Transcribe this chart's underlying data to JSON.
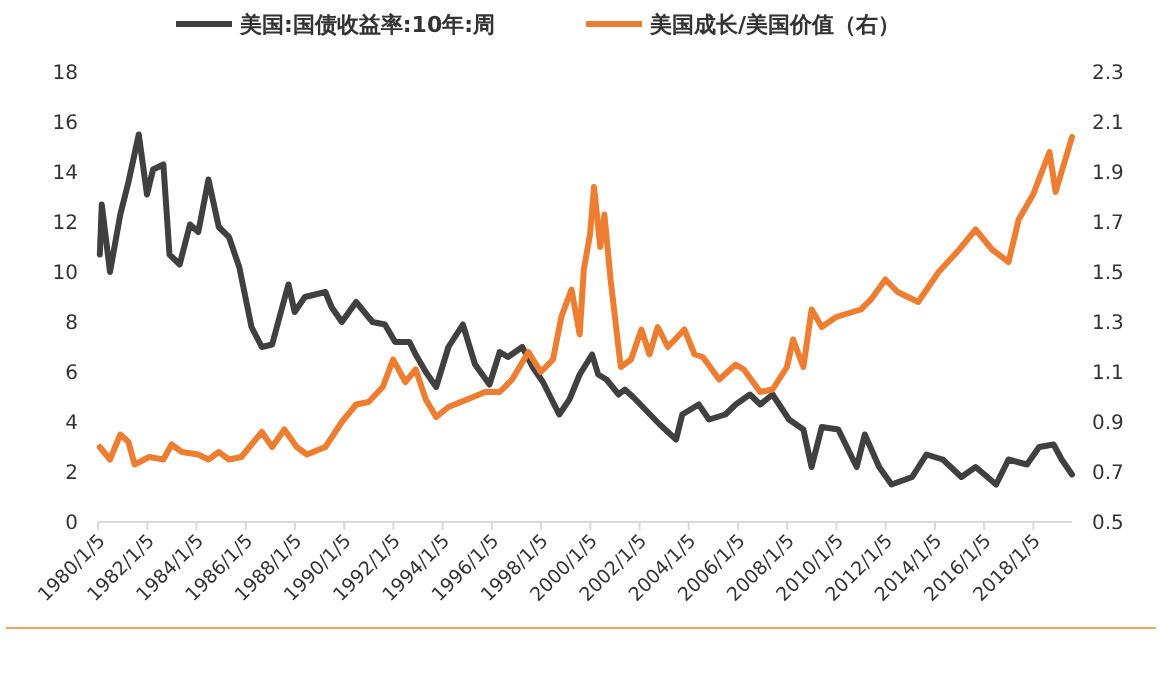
{
  "chart_data": {
    "type": "line",
    "legend": "top",
    "grid": false,
    "marker": "none",
    "line_style": "solid",
    "xlim": [
      "1980-01-05",
      "2019-08-01"
    ],
    "xticks": [
      {
        "value": "1980-01-05",
        "label": "1980/1/5"
      },
      {
        "value": "1982-01-05",
        "label": "1982/1/5"
      },
      {
        "value": "1984-01-05",
        "label": "1984/1/5"
      },
      {
        "value": "1986-01-05",
        "label": "1986/1/5"
      },
      {
        "value": "1988-01-05",
        "label": "1988/1/5"
      },
      {
        "value": "1990-01-05",
        "label": "1990/1/5"
      },
      {
        "value": "1992-01-05",
        "label": "1992/1/5"
      },
      {
        "value": "1994-01-05",
        "label": "1994/1/5"
      },
      {
        "value": "1996-01-05",
        "label": "1996/1/5"
      },
      {
        "value": "1998-01-05",
        "label": "1998/1/5"
      },
      {
        "value": "2000-01-05",
        "label": "2000/1/5"
      },
      {
        "value": "2002-01-05",
        "label": "2002/1/5"
      },
      {
        "value": "2004-01-05",
        "label": "2004/1/5"
      },
      {
        "value": "2006-01-05",
        "label": "2006/1/5"
      },
      {
        "value": "2008-01-05",
        "label": "2008/1/5"
      },
      {
        "value": "2010-01-05",
        "label": "2010/1/5"
      },
      {
        "value": "2012-01-05",
        "label": "2012/1/5"
      },
      {
        "value": "2014-01-05",
        "label": "2014/1/5"
      },
      {
        "value": "2016-01-05",
        "label": "2016/1/5"
      },
      {
        "value": "2018-01-05",
        "label": "2018/1/5"
      }
    ],
    "ylim": [
      0,
      18
    ],
    "yticks": [
      0,
      2,
      4,
      6,
      8,
      10,
      12,
      14,
      16,
      18
    ],
    "y2lim": [
      0.5,
      2.3
    ],
    "y2ticks": [
      0.5,
      0.7,
      0.9,
      1.1,
      1.3,
      1.5,
      1.7,
      1.9,
      2.1,
      2.3
    ],
    "series": [
      {
        "name": "美国:国债收益率:10年:周",
        "color": "#404040",
        "x": [
          "1980-02",
          "1980-03",
          "1980-07",
          "1980-12",
          "1981-04",
          "1981-09",
          "1982-01",
          "1982-04",
          "1982-09",
          "1982-12",
          "1983-05",
          "1983-10",
          "1984-02",
          "1984-07",
          "1984-12",
          "1985-05",
          "1985-10",
          "1986-04",
          "1986-09",
          "1987-02",
          "1987-07",
          "1987-10",
          "1988-01",
          "1988-06",
          "1989-04",
          "1989-07",
          "1989-12",
          "1990-07",
          "1991-03",
          "1991-09",
          "1992-02",
          "1992-09",
          "1992-12",
          "1993-05",
          "1993-10",
          "1994-04",
          "1994-11",
          "1995-05",
          "1995-12",
          "1996-05",
          "1996-09",
          "1997-04",
          "1997-09",
          "1998-02",
          "1998-10",
          "1999-03",
          "1999-08",
          "2000-02",
          "2000-05",
          "2000-09",
          "2001-03",
          "2001-06",
          "2001-10",
          "2002-11",
          "2003-07",
          "2003-10",
          "2004-06",
          "2004-11",
          "2005-07",
          "2005-12",
          "2006-07",
          "2006-12",
          "2007-06",
          "2008-02",
          "2008-09",
          "2009-01",
          "2009-06",
          "2010-02",
          "2010-11",
          "2011-03",
          "2011-10",
          "2012-04",
          "2013-02",
          "2013-09",
          "2014-05",
          "2015-02",
          "2015-09",
          "2016-07",
          "2017-01",
          "2017-10",
          "2018-04",
          "2018-11",
          "2019-03",
          "2019-08"
        ],
        "values": [
          10.7,
          12.7,
          10.0,
          12.3,
          13.6,
          15.5,
          13.1,
          14.1,
          14.3,
          10.7,
          10.3,
          11.9,
          11.6,
          13.7,
          11.8,
          11.4,
          10.2,
          7.8,
          7.0,
          7.1,
          8.6,
          9.5,
          8.4,
          9.0,
          9.2,
          8.6,
          8.0,
          8.8,
          8.0,
          7.9,
          7.2,
          7.2,
          6.7,
          6.0,
          5.4,
          7.0,
          7.9,
          6.3,
          5.5,
          6.8,
          6.6,
          7.0,
          6.2,
          5.6,
          4.3,
          4.9,
          5.9,
          6.7,
          5.9,
          5.7,
          5.1,
          5.3,
          5.0,
          3.9,
          3.3,
          4.3,
          4.7,
          4.1,
          4.3,
          4.7,
          5.1,
          4.7,
          5.1,
          4.1,
          3.7,
          2.2,
          3.8,
          3.7,
          2.2,
          3.5,
          2.2,
          1.5,
          1.8,
          2.7,
          2.5,
          1.8,
          2.2,
          1.5,
          2.5,
          2.3,
          3.0,
          3.1,
          2.5,
          1.9
        ]
      },
      {
        "name": "美国成长/美国价值（右）",
        "color": "#ed7d31",
        "axis": "y2",
        "x": [
          "1980-02",
          "1980-07",
          "1980-12",
          "1981-04",
          "1981-07",
          "1982-02",
          "1982-09",
          "1983-01",
          "1983-06",
          "1984-02",
          "1984-07",
          "1984-12",
          "1985-05",
          "1985-11",
          "1986-04",
          "1986-09",
          "1987-02",
          "1987-08",
          "1988-02",
          "1988-07",
          "1989-04",
          "1989-12",
          "1990-07",
          "1991-01",
          "1991-08",
          "1992-01",
          "1992-07",
          "1992-12",
          "1993-05",
          "1993-10",
          "1994-04",
          "1995-01",
          "1995-10",
          "1996-05",
          "1996-11",
          "1997-07",
          "1998-01",
          "1998-07",
          "1998-11",
          "1999-04",
          "1999-08",
          "1999-10",
          "2000-01",
          "2000-03",
          "2000-06",
          "2000-08",
          "2000-11",
          "2001-04",
          "2001-09",
          "2002-02",
          "2002-06",
          "2002-10",
          "2003-03",
          "2003-11",
          "2004-04",
          "2004-08",
          "2005-04",
          "2005-12",
          "2006-04",
          "2006-12",
          "2007-06",
          "2008-01",
          "2008-04",
          "2008-09",
          "2009-01",
          "2009-06",
          "2010-01",
          "2011-01",
          "2011-06",
          "2012-01",
          "2012-07",
          "2013-05",
          "2014-03",
          "2015-01",
          "2015-09",
          "2016-05",
          "2017-01",
          "2017-06",
          "2018-01",
          "2018-09",
          "2018-12",
          "2019-08"
        ],
        "values": [
          0.8,
          0.75,
          0.85,
          0.82,
          0.73,
          0.76,
          0.75,
          0.81,
          0.78,
          0.77,
          0.75,
          0.78,
          0.75,
          0.76,
          0.81,
          0.86,
          0.8,
          0.87,
          0.8,
          0.77,
          0.8,
          0.9,
          0.97,
          0.98,
          1.04,
          1.15,
          1.06,
          1.11,
          0.99,
          0.92,
          0.96,
          0.99,
          1.02,
          1.02,
          1.07,
          1.18,
          1.1,
          1.15,
          1.32,
          1.43,
          1.25,
          1.51,
          1.65,
          1.84,
          1.6,
          1.73,
          1.47,
          1.12,
          1.15,
          1.27,
          1.17,
          1.28,
          1.2,
          1.27,
          1.17,
          1.16,
          1.07,
          1.13,
          1.11,
          1.02,
          1.03,
          1.12,
          1.23,
          1.12,
          1.35,
          1.28,
          1.32,
          1.35,
          1.39,
          1.47,
          1.42,
          1.38,
          1.5,
          1.59,
          1.67,
          1.59,
          1.54,
          1.71,
          1.81,
          1.98,
          1.82,
          2.04
        ]
      }
    ]
  }
}
